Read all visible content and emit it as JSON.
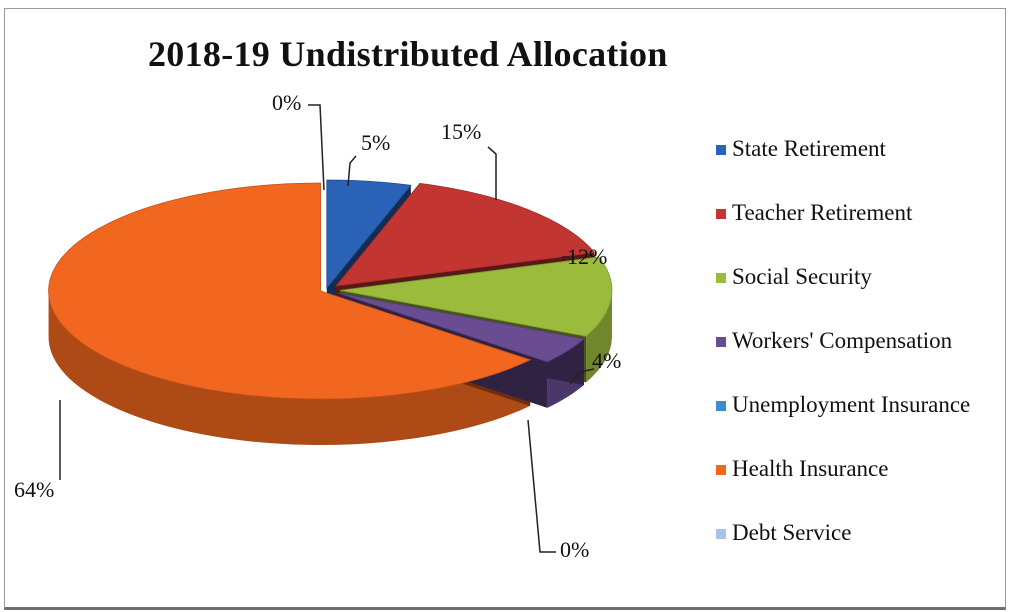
{
  "chart_data": {
    "type": "pie",
    "title": "2018-19  Undistributed Allocation",
    "three_d": true,
    "exploded": true,
    "legend_position": "right",
    "unit": "percent",
    "categories": [
      "State Retirement",
      "Teacher Retirement",
      "Social Security",
      "Workers' Compensation",
      "Unemployment Insurance",
      "Health Insurance",
      "Debt Service"
    ],
    "values": [
      5,
      15,
      12,
      4,
      0,
      64,
      0
    ],
    "data_labels": [
      "5%",
      "15%",
      "12%",
      "4%",
      "0%",
      "64%",
      "0%"
    ],
    "colors": [
      "#2a62b8",
      "#c23531",
      "#9bbb3c",
      "#6a4c93",
      "#3d8dcc",
      "#f2671f",
      "#a8c4ec"
    ]
  }
}
